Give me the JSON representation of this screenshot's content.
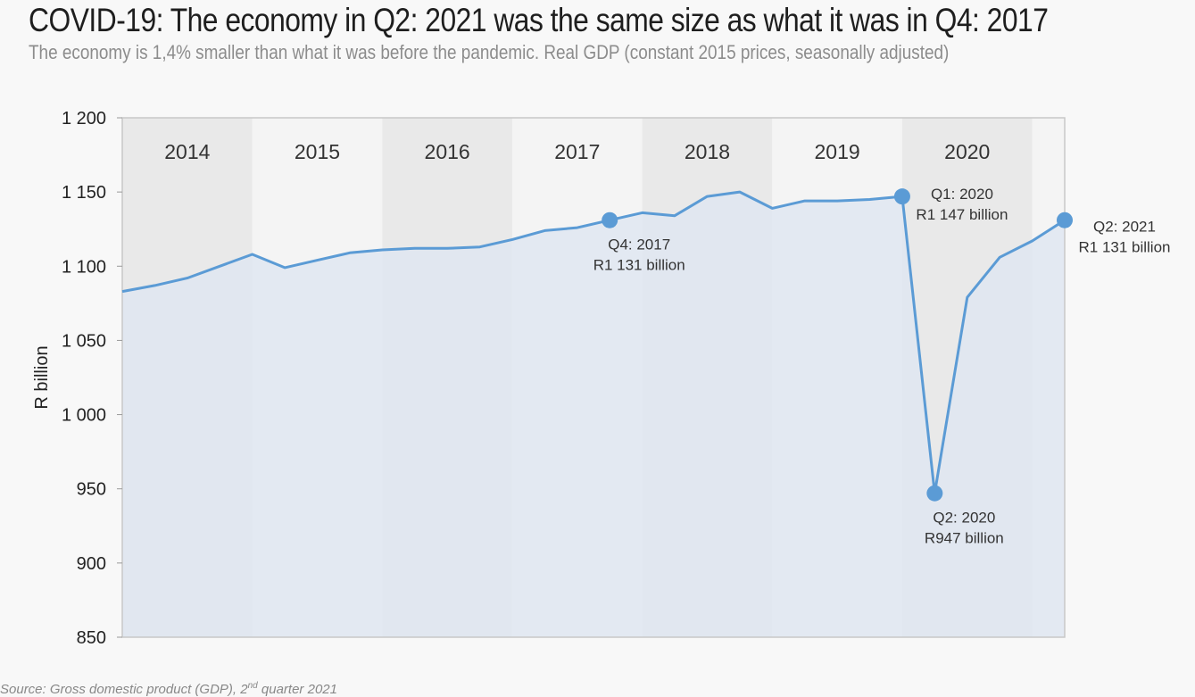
{
  "title": "COVID-19: The economy in Q2: 2021 was the same size as what it was in Q4: 2017",
  "subtitle": "The economy is 1,4% smaller than what it was before the pandemic. Real GDP (constant 2015 prices, seasonally adjusted)",
  "source": {
    "prefix": "Source: Gross domestic product (GDP), 2",
    "sup": "nd",
    "suffix": " quarter 2021"
  },
  "chart_data": {
    "type": "area",
    "ylabel": "R billion",
    "ylim": [
      850,
      1200
    ],
    "yticks": [
      850,
      900,
      950,
      1000,
      1050,
      1100,
      1150,
      1200
    ],
    "ytick_labels": [
      "850",
      "900",
      "950",
      "1 000",
      "1 050",
      "1 100",
      "1 150",
      "1 200"
    ],
    "grid": false,
    "colors": {
      "line": "#5b9bd5",
      "area": "#dfe7f1",
      "band_shaded": "#e9e9e9",
      "band_light": "#f4f4f4",
      "plot_border": "#c8c8c8"
    },
    "year_bands": [
      {
        "label": "2014",
        "shaded": true
      },
      {
        "label": "2015",
        "shaded": false
      },
      {
        "label": "2016",
        "shaded": true
      },
      {
        "label": "2017",
        "shaded": false
      },
      {
        "label": "2018",
        "shaded": true
      },
      {
        "label": "2019",
        "shaded": false
      },
      {
        "label": "2020",
        "shaded": true
      },
      {
        "label": "",
        "shaded": false
      }
    ],
    "x": [
      "Q1: 2014",
      "Q2: 2014",
      "Q3: 2014",
      "Q4: 2014",
      "Q1: 2015",
      "Q2: 2015",
      "Q3: 2015",
      "Q4: 2015",
      "Q1: 2016",
      "Q2: 2016",
      "Q3: 2016",
      "Q4: 2016",
      "Q1: 2017",
      "Q2: 2017",
      "Q3: 2017",
      "Q4: 2017",
      "Q1: 2018",
      "Q2: 2018",
      "Q3: 2018",
      "Q4: 2018",
      "Q1: 2019",
      "Q2: 2019",
      "Q3: 2019",
      "Q4: 2019",
      "Q1: 2020",
      "Q2: 2020",
      "Q3: 2020",
      "Q4: 2020",
      "Q1: 2021",
      "Q2: 2021"
    ],
    "series": [
      {
        "values": [
          1083,
          1087,
          1092,
          1100,
          1108,
          1099,
          1104,
          1109,
          1111,
          1112,
          1112,
          1113,
          1118,
          1124,
          1126,
          1131,
          1136,
          1134,
          1147,
          1150,
          1139,
          1144,
          1144,
          1145,
          1147,
          947,
          1079,
          1106,
          1117,
          1131
        ]
      }
    ],
    "annotations": [
      {
        "x": "Q4: 2017",
        "value": 1131,
        "line1": "Q4: 2017",
        "line2": "R1 131 billion",
        "pos": "below"
      },
      {
        "x": "Q1: 2020",
        "value": 1147,
        "line1": "Q1: 2020",
        "line2": "R1 147 billion",
        "pos": "right"
      },
      {
        "x": "Q2: 2020",
        "value": 947,
        "line1": "Q2: 2020",
        "line2": "R947 billion",
        "pos": "below"
      },
      {
        "x": "Q2: 2021",
        "value": 1131,
        "line1": "Q2: 2021",
        "line2": "R1 131 billion",
        "pos": "right"
      }
    ]
  }
}
